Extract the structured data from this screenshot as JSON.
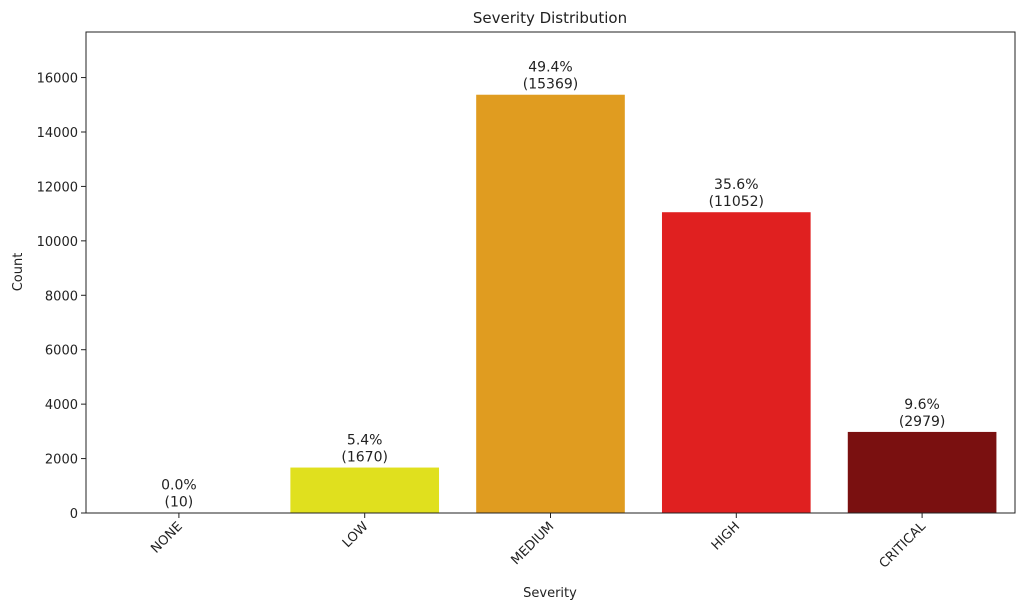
{
  "chart_data": {
    "type": "bar",
    "title": "Severity Distribution",
    "xlabel": "Severity",
    "ylabel": "Count",
    "categories": [
      "NONE",
      "LOW",
      "MEDIUM",
      "HIGH",
      "CRITICAL"
    ],
    "values": [
      10,
      1670,
      15369,
      11052,
      2979
    ],
    "percent_labels": [
      "0.0%",
      "5.4%",
      "49.4%",
      "35.6%",
      "9.6%"
    ],
    "count_labels": [
      "(10)",
      "(1670)",
      "(15369)",
      "(11052)",
      "(2979)"
    ],
    "colors": [
      "#1a9641",
      "#e0e01e",
      "#e09c20",
      "#e02020",
      "#7a1010"
    ],
    "ylim": [
      0,
      17674
    ],
    "yticks": [
      0,
      2000,
      4000,
      6000,
      8000,
      10000,
      12000,
      14000,
      16000
    ],
    "grid": false,
    "legend": "none"
  }
}
